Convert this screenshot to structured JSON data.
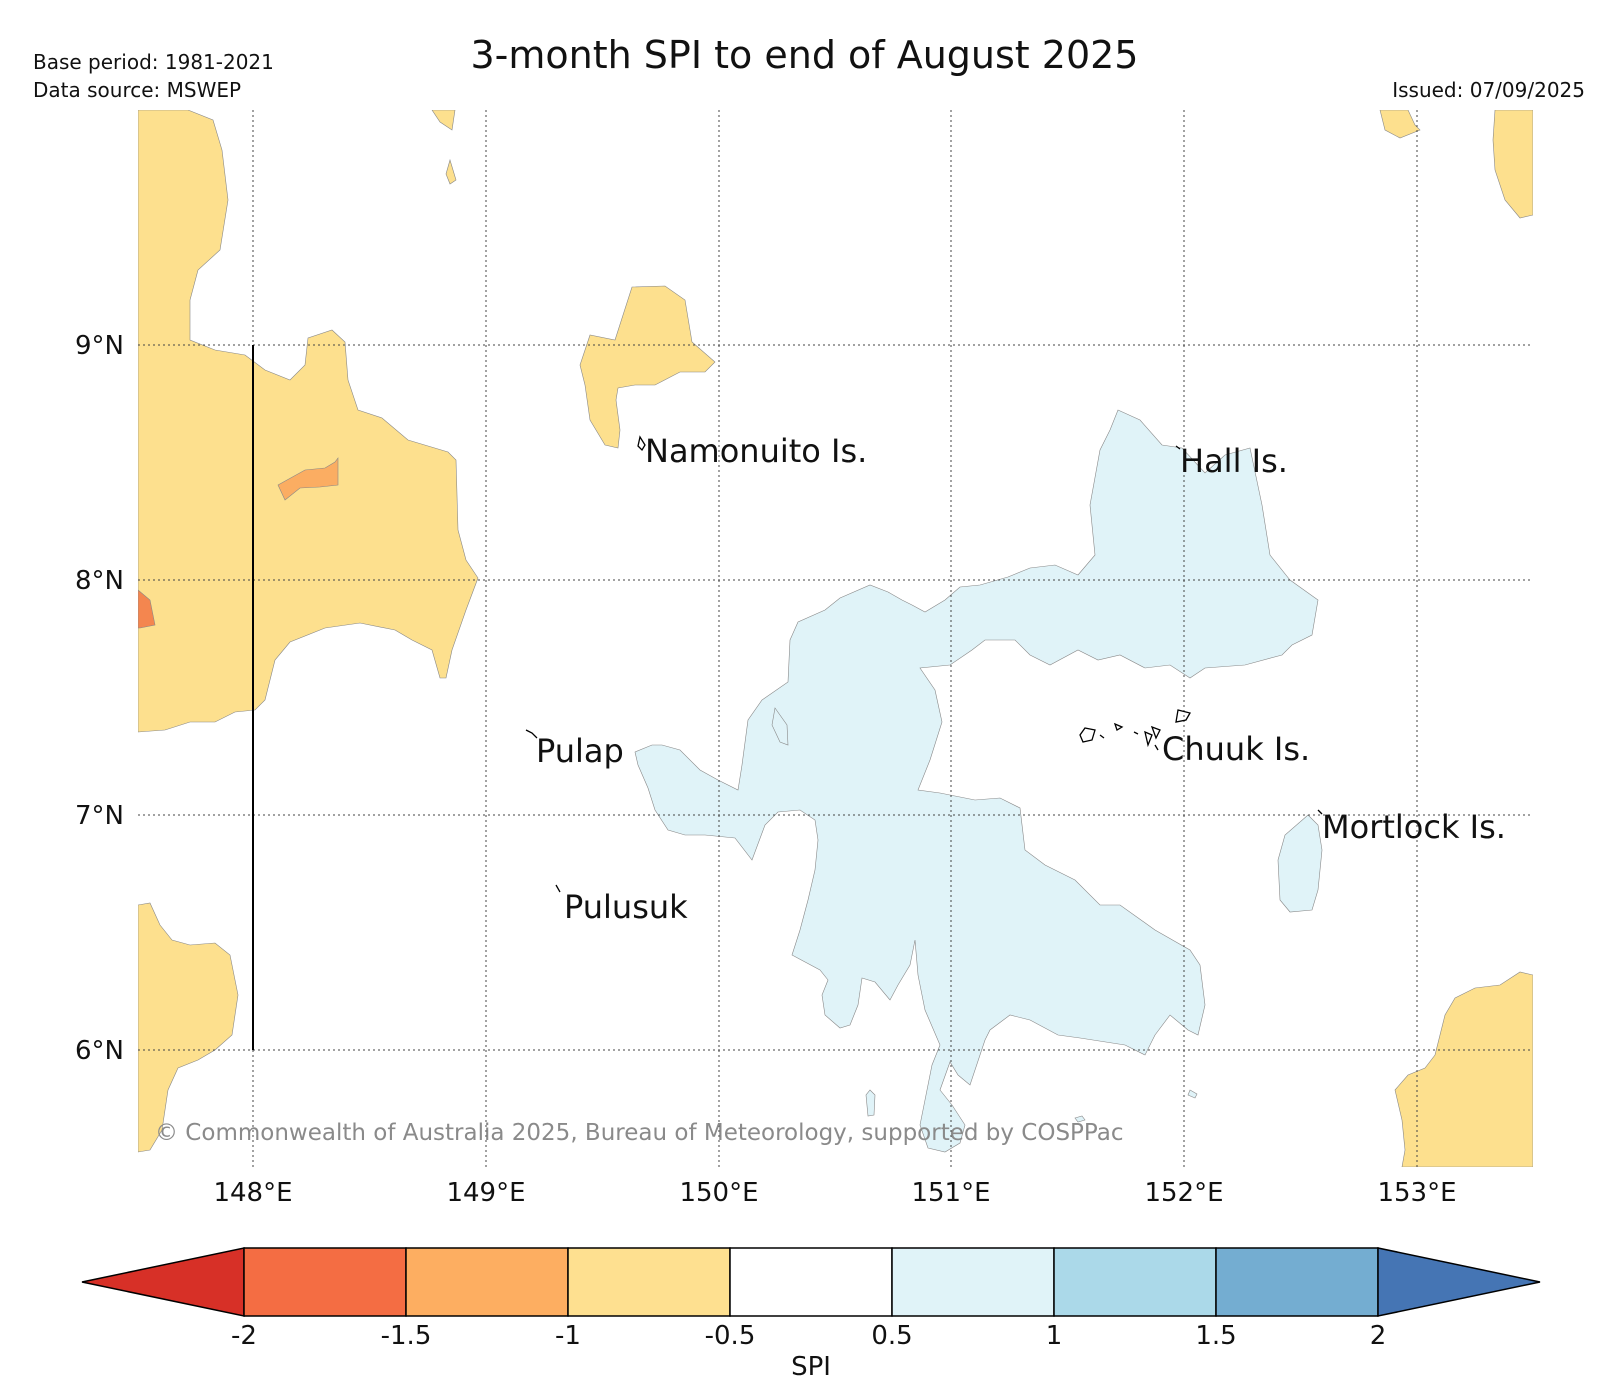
{
  "title": "3-month SPI to end of August 2025",
  "base_period": "Base period: 1981-2021",
  "data_source": "Data source: MSWEP",
  "issued": "Issued: 07/09/2025",
  "copyright": "© Commonwealth of Australia 2025, Bureau of Meteorology, supported by COSPPac",
  "lat_labels": [
    "9°N",
    "8°N",
    "7°N",
    "6°N"
  ],
  "lon_labels": [
    "148°E",
    "149°E",
    "150°E",
    "151°E",
    "152°E",
    "153°E"
  ],
  "places": {
    "namonuito": "Namonuito Is.",
    "hall": "Hall Is.",
    "pulap": "Pulap",
    "chuuk": "Chuuk Is.",
    "mortlock": "Mortlock Is.",
    "pulusuk": "Pulusuk"
  },
  "colorbar": {
    "title": "SPI",
    "ticks": [
      "-2",
      "-1.5",
      "-1",
      "-0.5",
      "0.5",
      "1",
      "1.5",
      "2"
    ],
    "colors": [
      "#d73027",
      "#f46d43",
      "#fdae61",
      "#fee090",
      "#ffffff",
      "#e0f3f8",
      "#abd9e9",
      "#74add1",
      "#4575b4"
    ]
  }
}
